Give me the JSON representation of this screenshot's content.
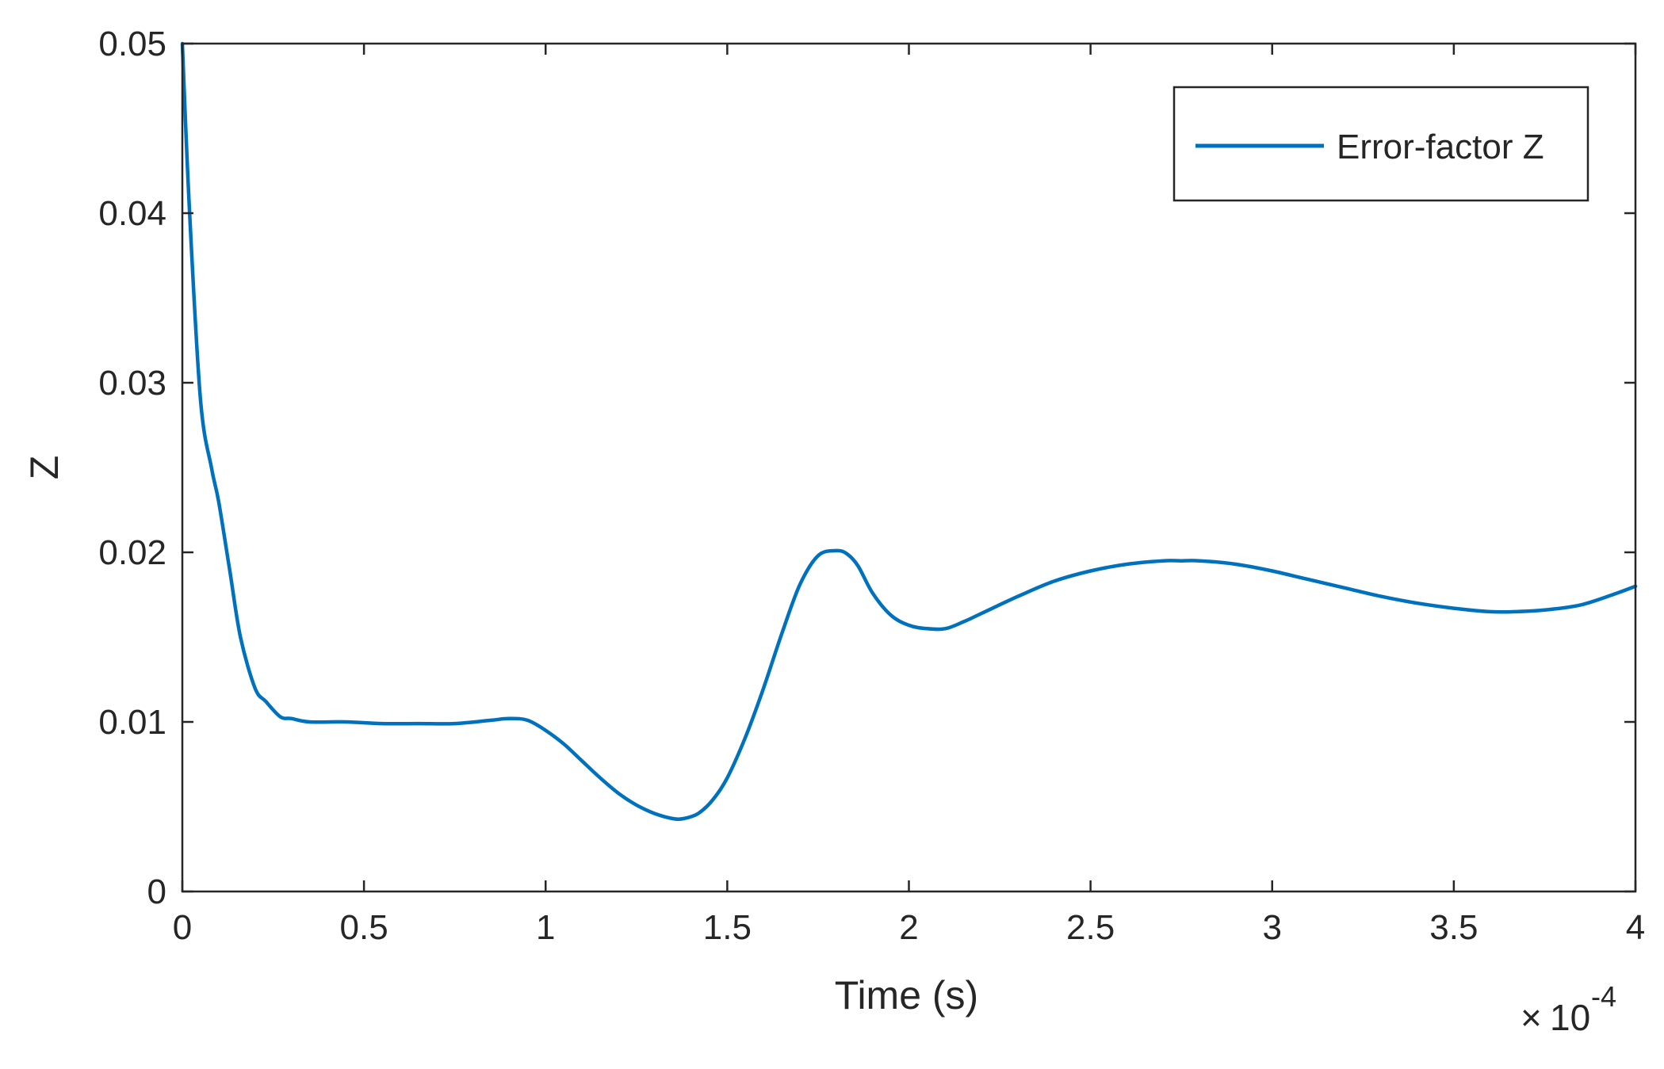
{
  "chart_data": {
    "type": "line",
    "title": "",
    "xlabel": "Time (s)",
    "ylabel": "Z",
    "x_multiplier": {
      "times": "×",
      "base": "10",
      "exponent": "-4"
    },
    "xlim": [
      0,
      4
    ],
    "ylim": [
      0,
      0.05
    ],
    "x_ticks": [
      0,
      0.5,
      1,
      1.5,
      2,
      2.5,
      3,
      3.5,
      4
    ],
    "x_tick_labels": [
      "0",
      "0.5",
      "1",
      "1.5",
      "2",
      "2.5",
      "3",
      "3.5",
      "4"
    ],
    "y_ticks": [
      0,
      0.01,
      0.02,
      0.03,
      0.04,
      0.05
    ],
    "y_tick_labels": [
      "0",
      "0.01",
      "0.02",
      "0.03",
      "0.04",
      "0.05"
    ],
    "grid": false,
    "legend_position": "top-right",
    "line_color": "#0072BD",
    "series": [
      {
        "name": "Error-factor Z",
        "x": [
          0,
          0.02,
          0.05,
          0.08,
          0.1,
          0.13,
          0.16,
          0.2,
          0.23,
          0.27,
          0.3,
          0.35,
          0.45,
          0.55,
          0.65,
          0.75,
          0.85,
          0.9,
          0.95,
          1.0,
          1.05,
          1.1,
          1.15,
          1.2,
          1.25,
          1.3,
          1.35,
          1.38,
          1.42,
          1.46,
          1.5,
          1.55,
          1.6,
          1.65,
          1.7,
          1.75,
          1.8,
          1.83,
          1.86,
          1.9,
          1.95,
          2.0,
          2.05,
          2.1,
          2.15,
          2.2,
          2.3,
          2.4,
          2.5,
          2.6,
          2.7,
          2.75,
          2.8,
          2.9,
          3.0,
          3.1,
          3.2,
          3.3,
          3.4,
          3.5,
          3.6,
          3.67,
          3.75,
          3.85,
          3.95,
          4.0
        ],
        "y": [
          0.05,
          0.04,
          0.029,
          0.025,
          0.023,
          0.019,
          0.015,
          0.012,
          0.0112,
          0.0103,
          0.0102,
          0.01,
          0.01,
          0.0099,
          0.0099,
          0.0099,
          0.0101,
          0.0102,
          0.0101,
          0.0095,
          0.0087,
          0.0077,
          0.0067,
          0.0058,
          0.0051,
          0.0046,
          0.0043,
          0.0043,
          0.0046,
          0.0054,
          0.0067,
          0.0091,
          0.012,
          0.0152,
          0.0181,
          0.0198,
          0.0201,
          0.0199,
          0.0192,
          0.0176,
          0.0163,
          0.0157,
          0.0155,
          0.0155,
          0.0159,
          0.0164,
          0.0174,
          0.0183,
          0.0189,
          0.0193,
          0.0195,
          0.0195,
          0.0195,
          0.0193,
          0.0189,
          0.0184,
          0.0179,
          0.0174,
          0.017,
          0.0167,
          0.0165,
          0.0165,
          0.0166,
          0.0169,
          0.0176,
          0.018
        ]
      }
    ]
  }
}
